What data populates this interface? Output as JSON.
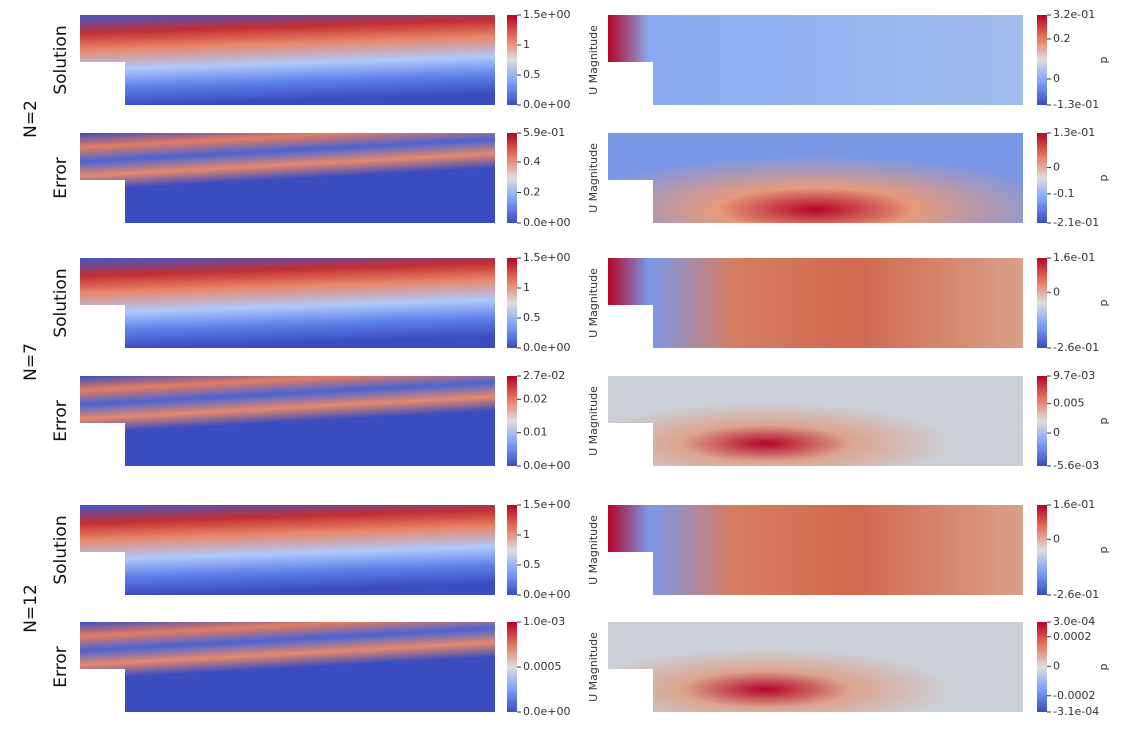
{
  "groups": [
    {
      "label": "N=2",
      "rows": [
        {
          "label": "Solution",
          "u": {
            "title": "U Magnitude",
            "ticks": [
              "1.5e+00",
              "1",
              "0.5",
              "0.0e+00"
            ]
          },
          "p": {
            "title": "p",
            "ticks": [
              "3.2e-01",
              "0.2",
              "0",
              "-1.3e-01"
            ]
          }
        },
        {
          "label": "Error",
          "u": {
            "title": "U Magnitude",
            "ticks": [
              "5.9e-01",
              "0.4",
              "0.2",
              "0.0e+00"
            ]
          },
          "p": {
            "title": "p",
            "ticks": [
              "1.3e-01",
              "0",
              "-0.1",
              "-2.1e-01"
            ]
          }
        }
      ]
    },
    {
      "label": "N=7",
      "rows": [
        {
          "label": "Solution",
          "u": {
            "title": "U Magnitude",
            "ticks": [
              "1.5e+00",
              "1",
              "0.5",
              "0.0e+00"
            ]
          },
          "p": {
            "title": "p",
            "ticks": [
              "1.6e-01",
              "0",
              "-2.6e-01"
            ]
          }
        },
        {
          "label": "Error",
          "u": {
            "title": "U Magnitude",
            "ticks": [
              "2.7e-02",
              "0.02",
              "0.01",
              "0.0e+00"
            ]
          },
          "p": {
            "title": "p",
            "ticks": [
              "9.7e-03",
              "0.005",
              "0",
              "-5.6e-03"
            ]
          }
        }
      ]
    },
    {
      "label": "N=12",
      "rows": [
        {
          "label": "Solution",
          "u": {
            "title": "U Magnitude",
            "ticks": [
              "1.5e+00",
              "1",
              "0.5",
              "0.0e+00"
            ]
          },
          "p": {
            "title": "p",
            "ticks": [
              "1.6e-01",
              "0",
              "-2.6e-01"
            ]
          }
        },
        {
          "label": "Error",
          "u": {
            "title": "U Magnitude",
            "ticks": [
              "1.0e-03",
              "0.0005",
              "0.0e+00"
            ]
          },
          "p": {
            "title": "p",
            "ticks": [
              "3.0e-04",
              "0.0002",
              "0",
              "-0.0002",
              "-3.1e-04"
            ]
          }
        }
      ]
    }
  ]
}
